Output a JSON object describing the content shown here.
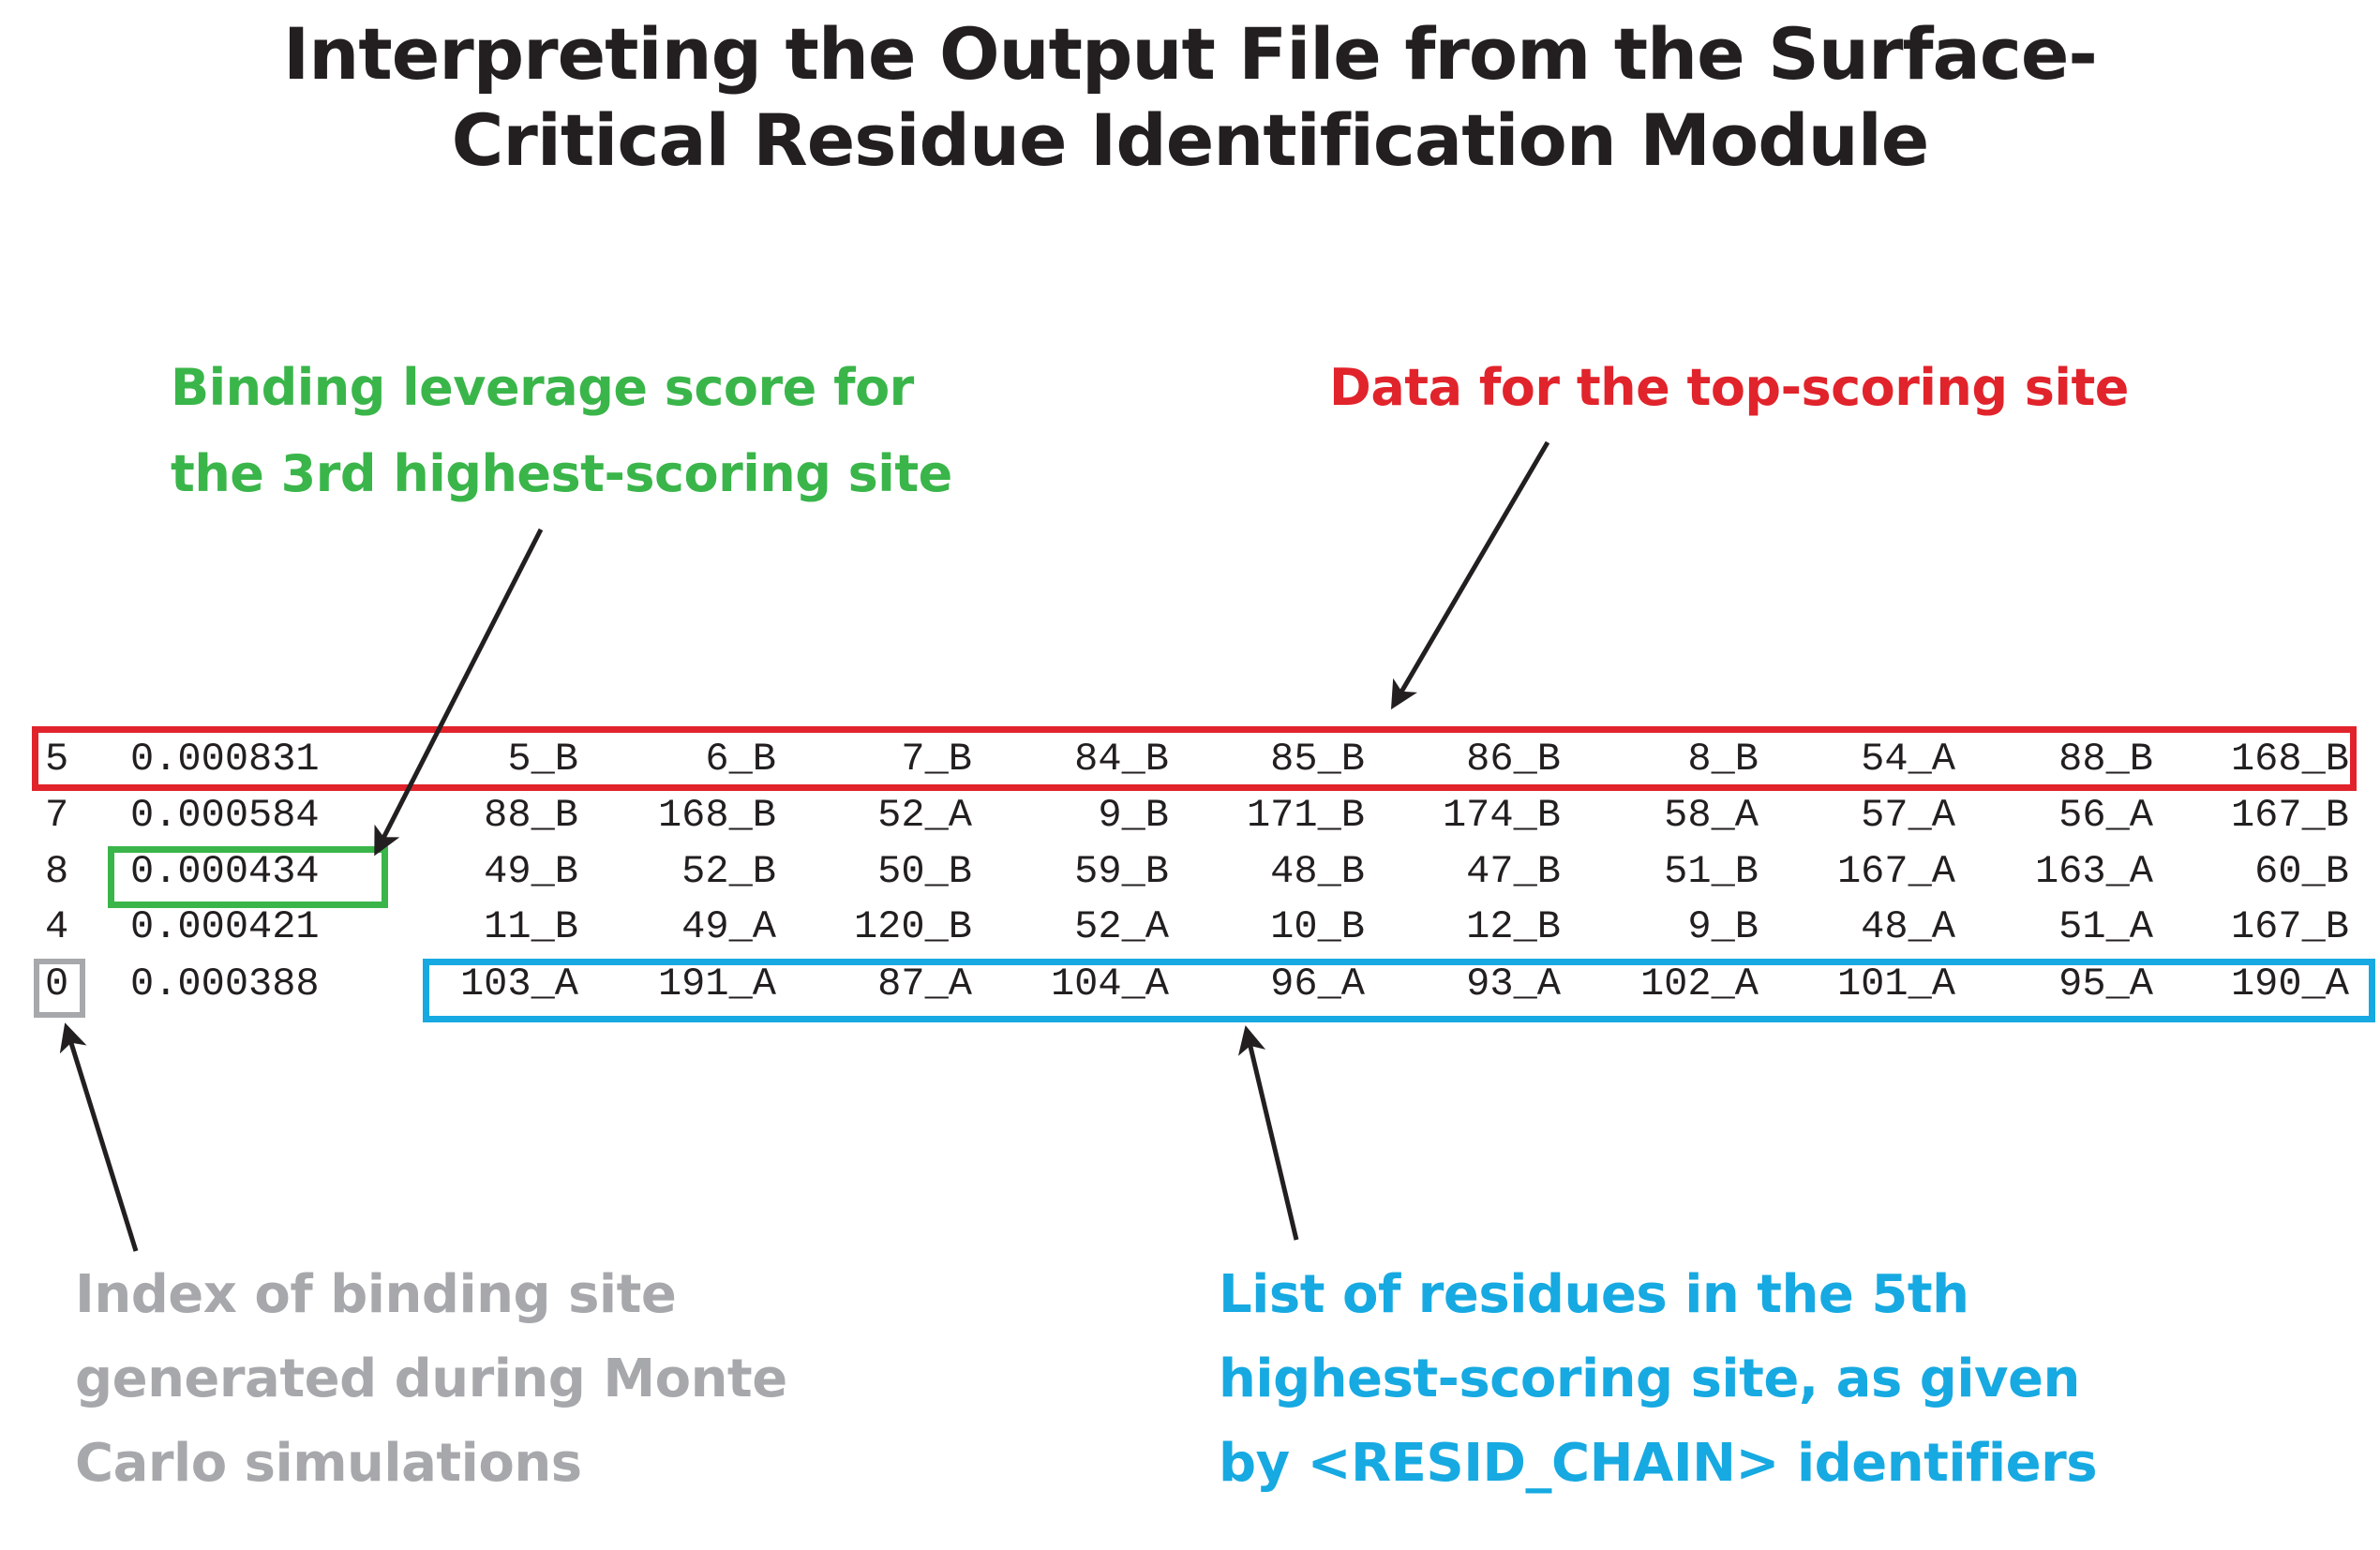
{
  "title": {
    "line1": "Interpreting the Output File from the Surface-",
    "line2": "Critical Residue Identification Module"
  },
  "annotations": {
    "green": {
      "line1": "Binding leverage score for",
      "line2": "the 3rd highest-scoring site",
      "color": "#3ab54a"
    },
    "red": {
      "line1": "Data for the top-scoring site",
      "color": "#e1232b"
    },
    "gray": {
      "line1": "Index of binding site",
      "line2": "generated during Monte",
      "line3": "Carlo simulations",
      "color": "#a6a8ab"
    },
    "blue": {
      "line1": "List of residues in the 5th",
      "line2": "highest-scoring site, as given",
      "line3": "by <RESID_CHAIN> identifiers",
      "color": "#17a9e1"
    }
  },
  "rows": [
    {
      "index": "5",
      "score": "0.000831",
      "residues": [
        "5_B",
        "6_B",
        "7_B",
        "84_B",
        "85_B",
        "86_B",
        "8_B",
        "54_A",
        "88_B",
        "168_B"
      ]
    },
    {
      "index": "7",
      "score": "0.000584",
      "residues": [
        "88_B",
        "168_B",
        "52_A",
        "9_B",
        "171_B",
        "174_B",
        "58_A",
        "57_A",
        "56_A",
        "167_B"
      ]
    },
    {
      "index": "8",
      "score": "0.000434",
      "residues": [
        "49_B",
        "52_B",
        "50_B",
        "59_B",
        "48_B",
        "47_B",
        "51_B",
        "167_A",
        "163_A",
        "60_B"
      ]
    },
    {
      "index": "4",
      "score": "0.000421",
      "residues": [
        "11_B",
        "49_A",
        "120_B",
        "52_A",
        "10_B",
        "12_B",
        "9_B",
        "48_A",
        "51_A",
        "167_B"
      ]
    },
    {
      "index": "0",
      "score": "0.000388",
      "residues": [
        "103_A",
        "191_A",
        "87_A",
        "104_A",
        "96_A",
        "93_A",
        "102_A",
        "101_A",
        "95_A",
        "190_A"
      ]
    }
  ]
}
